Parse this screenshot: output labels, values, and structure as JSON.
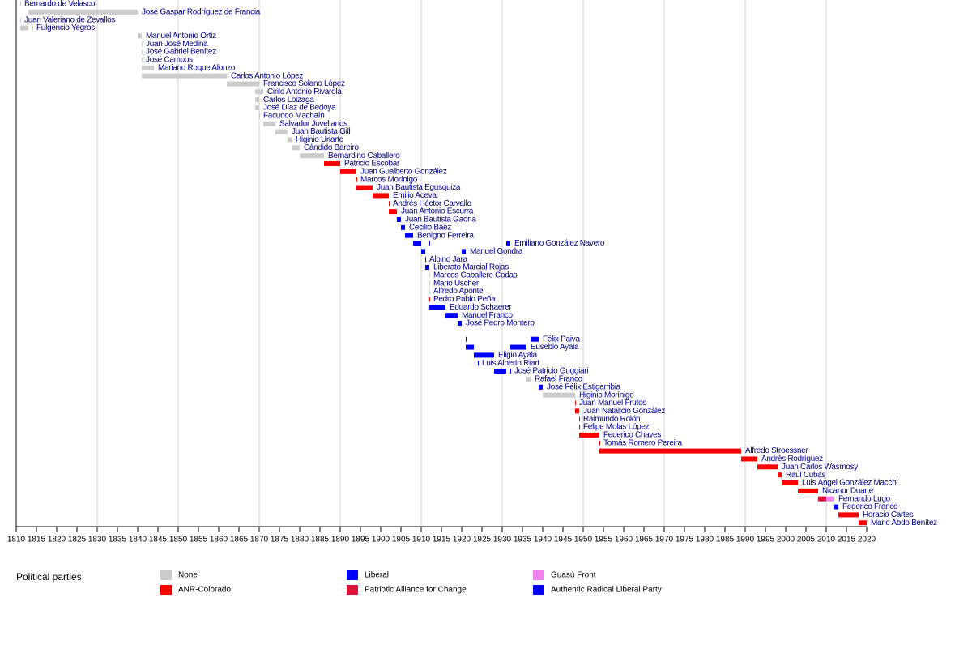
{
  "chart_data": {
    "type": "timeline",
    "xlim": [
      1810,
      2020
    ],
    "xticks": [
      1810,
      1815,
      1820,
      1825,
      1830,
      1835,
      1840,
      1845,
      1850,
      1855,
      1860,
      1865,
      1870,
      1875,
      1880,
      1885,
      1890,
      1895,
      1900,
      1905,
      1910,
      1915,
      1920,
      1925,
      1930,
      1935,
      1940,
      1945,
      1950,
      1955,
      1960,
      1965,
      1970,
      1975,
      1980,
      1985,
      1990,
      1995,
      2000,
      2005,
      2010,
      2015,
      2020
    ],
    "xgrid": [
      1830,
      1850,
      1870,
      1890,
      1910,
      1930,
      1950,
      1970,
      1990,
      2010
    ],
    "legend_title": "Political parties:",
    "parties": [
      {
        "name": "None",
        "color": "#cccccc"
      },
      {
        "name": "ANR-Colorado",
        "color": "#ff0000"
      },
      {
        "name": "Liberal",
        "color": "#0000ff"
      },
      {
        "name": "Patriotic Alliance for Change",
        "color": "#dc143c"
      },
      {
        "name": "Guasú Front",
        "color": "#ee82ee"
      },
      {
        "name": "Authentic Radical Liberal Party",
        "color": "#0000ee"
      }
    ],
    "rows": [
      {
        "name": "Bernardo de Velasco",
        "terms": [
          [
            1811,
            1811,
            "None"
          ]
        ]
      },
      {
        "name": "José Gaspar Rodríguez de Francia",
        "terms": [
          [
            1813,
            1840,
            "None"
          ]
        ]
      },
      {
        "name": "Juan Valeriano de Zevallos",
        "terms": [
          [
            1811,
            1811,
            "None"
          ]
        ]
      },
      {
        "name": "Fulgencio Yegros",
        "terms": [
          [
            1811,
            1813,
            "None"
          ],
          [
            1814,
            1814,
            "None"
          ]
        ]
      },
      {
        "name": "Manuel Antonio Ortiz",
        "terms": [
          [
            1840,
            1841,
            "None"
          ]
        ]
      },
      {
        "name": "Juan José Medina",
        "terms": [
          [
            1841,
            1841,
            "None"
          ]
        ]
      },
      {
        "name": "José Gabriel Benítez",
        "terms": [
          [
            1841,
            1841,
            "None"
          ]
        ]
      },
      {
        "name": "José Campos",
        "terms": [
          [
            1841,
            1841,
            "None"
          ]
        ]
      },
      {
        "name": "Mariano Roque Alonzo",
        "terms": [
          [
            1841,
            1844,
            "None"
          ]
        ]
      },
      {
        "name": "Carlos Antonio López",
        "terms": [
          [
            1841,
            1862,
            "None"
          ]
        ]
      },
      {
        "name": "Francisco Solano López",
        "terms": [
          [
            1862,
            1870,
            "None"
          ]
        ]
      },
      {
        "name": "Cirilo Antonio Rivarola",
        "terms": [
          [
            1869,
            1871,
            "None"
          ]
        ]
      },
      {
        "name": "Carlos Loizaga",
        "terms": [
          [
            1869,
            1870,
            "None"
          ]
        ]
      },
      {
        "name": "José Díaz de Bedoya",
        "terms": [
          [
            1869,
            1870,
            "None"
          ]
        ]
      },
      {
        "name": "Facundo Machaín",
        "terms": [
          [
            1870,
            1870,
            "None"
          ]
        ]
      },
      {
        "name": "Salvador Jovellanos",
        "terms": [
          [
            1871,
            1874,
            "None"
          ]
        ]
      },
      {
        "name": "Juan Bautista Gill",
        "terms": [
          [
            1874,
            1877,
            "None"
          ]
        ]
      },
      {
        "name": "Higinio Uriarte",
        "terms": [
          [
            1877,
            1878,
            "None"
          ]
        ]
      },
      {
        "name": "Cándido Bareiro",
        "terms": [
          [
            1878,
            1880,
            "None"
          ]
        ]
      },
      {
        "name": "Bernardino Caballero",
        "terms": [
          [
            1880,
            1886,
            "None"
          ]
        ]
      },
      {
        "name": "Patricio Escobar",
        "terms": [
          [
            1886,
            1890,
            "ANR-Colorado"
          ]
        ]
      },
      {
        "name": "Juan Gualberto González",
        "terms": [
          [
            1890,
            1894,
            "ANR-Colorado"
          ]
        ]
      },
      {
        "name": "Marcos Morínigo",
        "terms": [
          [
            1894,
            1894,
            "ANR-Colorado"
          ]
        ]
      },
      {
        "name": "Juan Bautista Egusquiza",
        "terms": [
          [
            1894,
            1898,
            "ANR-Colorado"
          ]
        ]
      },
      {
        "name": "Emilio Aceval",
        "terms": [
          [
            1898,
            1902,
            "ANR-Colorado"
          ]
        ]
      },
      {
        "name": "Andrés Héctor Carvallo",
        "terms": [
          [
            1902,
            1902,
            "ANR-Colorado"
          ]
        ]
      },
      {
        "name": "Juan Antonio Escurra",
        "terms": [
          [
            1902,
            1904,
            "ANR-Colorado"
          ]
        ]
      },
      {
        "name": "Juan Bautista Gaona",
        "terms": [
          [
            1904,
            1905,
            "Liberal"
          ]
        ]
      },
      {
        "name": "Cecilio Báez",
        "terms": [
          [
            1905,
            1906,
            "Liberal"
          ]
        ]
      },
      {
        "name": "Benigno Ferreira",
        "terms": [
          [
            1906,
            1908,
            "Liberal"
          ]
        ]
      },
      {
        "name": "Emiliano González Navero",
        "terms": [
          [
            1908,
            1910,
            "Liberal"
          ],
          [
            1912,
            1912,
            "Liberal"
          ],
          [
            1931,
            1932,
            "Liberal"
          ]
        ]
      },
      {
        "name": "Manuel Gondra",
        "terms": [
          [
            1910,
            1911,
            "Liberal"
          ],
          [
            1920,
            1921,
            "Liberal"
          ]
        ]
      },
      {
        "name": "Albino Jara",
        "terms": [
          [
            1911,
            1911,
            "Liberal"
          ]
        ]
      },
      {
        "name": "Liberato Marcial Rojas",
        "terms": [
          [
            1911,
            1912,
            "Liberal"
          ]
        ]
      },
      {
        "name": "Marcos Caballero Codas",
        "terms": [
          [
            1912,
            1912,
            "None"
          ]
        ]
      },
      {
        "name": "Mario Uscher",
        "terms": [
          [
            1912,
            1912,
            "None"
          ]
        ]
      },
      {
        "name": "Alfredo Aponte",
        "terms": [
          [
            1912,
            1912,
            "None"
          ]
        ]
      },
      {
        "name": "Pedro Pablo Peña",
        "terms": [
          [
            1912,
            1912,
            "ANR-Colorado"
          ]
        ]
      },
      {
        "name": "Eduardo Schaerer",
        "terms": [
          [
            1912,
            1916,
            "Liberal"
          ]
        ]
      },
      {
        "name": "Manuel Franco",
        "terms": [
          [
            1916,
            1919,
            "Liberal"
          ]
        ]
      },
      {
        "name": "José Pedro Montero",
        "terms": [
          [
            1919,
            1920,
            "Liberal"
          ]
        ]
      },
      {
        "name": null,
        "terms": []
      },
      {
        "name": "Félix Paiva",
        "terms": [
          [
            1921,
            1921,
            "Liberal"
          ],
          [
            1937,
            1939,
            "Liberal"
          ]
        ]
      },
      {
        "name": "Eusebio Ayala",
        "terms": [
          [
            1921,
            1923,
            "Liberal"
          ],
          [
            1932,
            1936,
            "Liberal"
          ]
        ]
      },
      {
        "name": "Eligio Ayala",
        "terms": [
          [
            1923,
            1928,
            "Liberal"
          ]
        ]
      },
      {
        "name": "Luis Alberto Riart",
        "terms": [
          [
            1924,
            1924,
            "Liberal"
          ]
        ]
      },
      {
        "name": "José Patricio Guggiari",
        "terms": [
          [
            1928,
            1931,
            "Liberal"
          ],
          [
            1932,
            1932,
            "Liberal"
          ]
        ]
      },
      {
        "name": "Rafael Franco",
        "terms": [
          [
            1936,
            1937,
            "None"
          ]
        ]
      },
      {
        "name": "José Félix Estigarribia",
        "terms": [
          [
            1939,
            1940,
            "Liberal"
          ]
        ]
      },
      {
        "name": "Higinio Morínigo",
        "terms": [
          [
            1940,
            1948,
            "None"
          ]
        ]
      },
      {
        "name": "Juan Manuel Frutos",
        "terms": [
          [
            1948,
            1948,
            "ANR-Colorado"
          ]
        ]
      },
      {
        "name": "Juan Natalicio González",
        "terms": [
          [
            1948,
            1949,
            "ANR-Colorado"
          ]
        ]
      },
      {
        "name": "Raimundo Rolón",
        "terms": [
          [
            1949,
            1949,
            "ANR-Colorado"
          ]
        ]
      },
      {
        "name": "Felipe Molas López",
        "terms": [
          [
            1949,
            1949,
            "ANR-Colorado"
          ]
        ]
      },
      {
        "name": "Federico Chaves",
        "terms": [
          [
            1949,
            1954,
            "ANR-Colorado"
          ]
        ]
      },
      {
        "name": "Tomás Romero Pereira",
        "terms": [
          [
            1954,
            1954,
            "ANR-Colorado"
          ]
        ]
      },
      {
        "name": "Alfredo Stroessner",
        "terms": [
          [
            1954,
            1989,
            "ANR-Colorado"
          ]
        ]
      },
      {
        "name": "Andrés Rodríguez",
        "terms": [
          [
            1989,
            1993,
            "ANR-Colorado"
          ]
        ]
      },
      {
        "name": "Juan Carlos Wasmosy",
        "terms": [
          [
            1993,
            1998,
            "ANR-Colorado"
          ]
        ]
      },
      {
        "name": "Raúl Cubas",
        "terms": [
          [
            1998,
            1999,
            "ANR-Colorado"
          ]
        ]
      },
      {
        "name": "Luis Ángel González Macchi",
        "terms": [
          [
            1999,
            2003,
            "ANR-Colorado"
          ]
        ]
      },
      {
        "name": "Nicanor Duarte",
        "terms": [
          [
            2003,
            2008,
            "ANR-Colorado"
          ]
        ]
      },
      {
        "name": "Fernando Lugo",
        "terms": [
          [
            2008,
            2010,
            "Patriotic Alliance for Change"
          ],
          [
            2010,
            2012,
            "Guasú Front"
          ]
        ]
      },
      {
        "name": "Federico Franco",
        "terms": [
          [
            2012,
            2013,
            "Authentic Radical Liberal Party"
          ]
        ]
      },
      {
        "name": "Horacio Cartes",
        "terms": [
          [
            2013,
            2018,
            "ANR-Colorado"
          ]
        ]
      },
      {
        "name": "Mario Abdo Benítez",
        "terms": [
          [
            2018,
            2020,
            "ANR-Colorado"
          ]
        ]
      }
    ]
  }
}
